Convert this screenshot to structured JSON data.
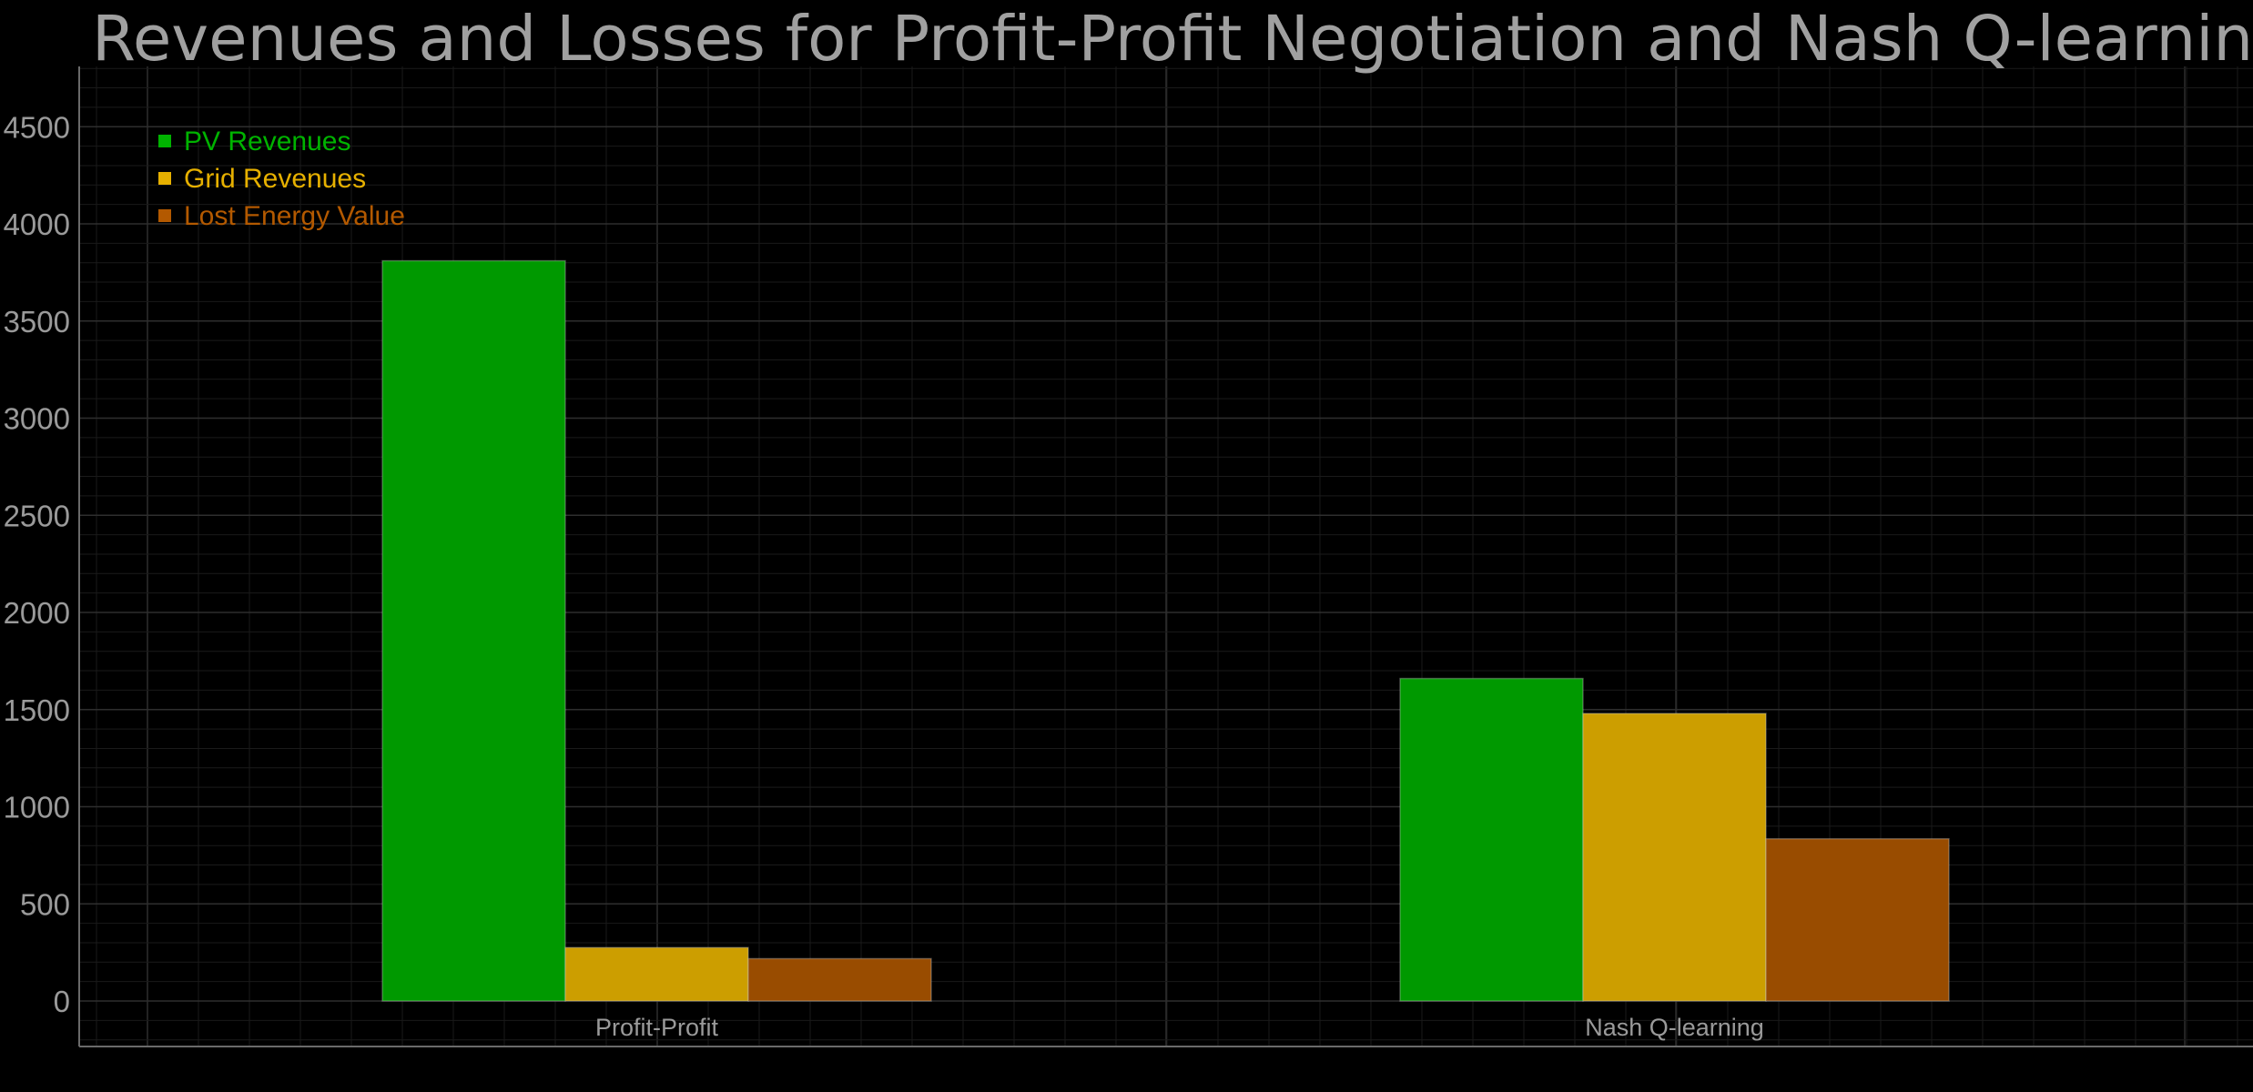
{
  "chart_data": {
    "type": "bar",
    "title": "Revenues and Losses for Profit-Profit Negotiation and Nash Q-learning [€]",
    "categories": [
      "Profit-Profit",
      "Nash Q-learning"
    ],
    "series": [
      {
        "name": "PV Revenues",
        "values": [
          3810,
          1660
        ],
        "color": "#009900"
      },
      {
        "name": "Grid Revenues",
        "values": [
          275,
          1480
        ],
        "color": "#cc9e00"
      },
      {
        "name": "Lost Energy Value",
        "values": [
          218,
          835
        ],
        "color": "#994c00"
      }
    ],
    "yticks": [
      0,
      500,
      1000,
      1500,
      2000,
      2500,
      3000,
      3500,
      4000,
      4500
    ],
    "ylim": [
      0,
      4800
    ],
    "grid": true,
    "legend_position": "top-left",
    "background": "#000000",
    "grid_color": "#333333",
    "text_color": "#9a9a9a"
  }
}
